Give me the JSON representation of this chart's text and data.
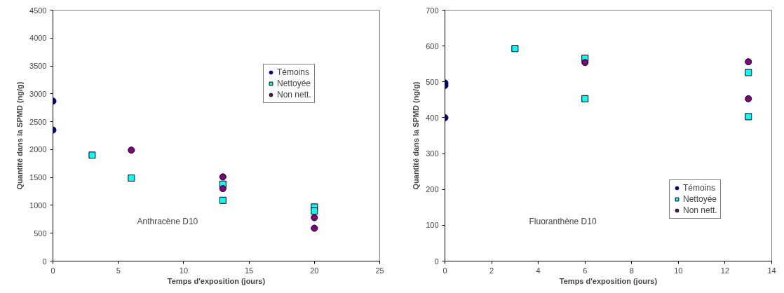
{
  "chart_data": [
    {
      "type": "scatter",
      "xlabel": "Temps d'exposition (jours)",
      "ylabel": "Quantité dans la SPMD (ng/g)",
      "annotations": [
        "Anthracène D10"
      ],
      "xlim": [
        0,
        25
      ],
      "xticks": [
        0,
        5,
        10,
        15,
        20,
        25
      ],
      "ylim": [
        0,
        4500
      ],
      "yticks": [
        0,
        500,
        1000,
        1500,
        2000,
        2500,
        3000,
        3500,
        4000,
        4500
      ],
      "grid": false,
      "legend": "top right",
      "series": [
        {
          "name": "Témoins",
          "color": "#000080",
          "marker": "circle",
          "x": [
            0,
            0
          ],
          "values": [
            2870,
            2350
          ]
        },
        {
          "name": "Nettoyée",
          "color": "#00ffff",
          "marker": "square",
          "x": [
            3,
            6,
            13,
            13,
            20,
            20
          ],
          "values": [
            1900,
            1490,
            1380,
            1090,
            970,
            900
          ]
        },
        {
          "name": "Non nett.",
          "color": "#800080",
          "marker": "circle",
          "x": [
            6,
            13,
            13,
            20,
            20
          ],
          "values": [
            1990,
            1510,
            1300,
            780,
            590
          ]
        }
      ]
    },
    {
      "type": "scatter",
      "xlabel": "Temps d'exposition (jours)",
      "ylabel": "Quantité dans la SPMD (ng/g)",
      "annotations": [
        "Fluoranthène D10"
      ],
      "xlim": [
        0,
        14
      ],
      "xticks": [
        0,
        2,
        4,
        6,
        8,
        10,
        12,
        14
      ],
      "ylim": [
        0,
        700
      ],
      "yticks": [
        0,
        100,
        200,
        300,
        400,
        500,
        600,
        700
      ],
      "grid": false,
      "legend": "right",
      "series": [
        {
          "name": "Témoins",
          "color": "#000080",
          "marker": "circle",
          "x": [
            0,
            0,
            0
          ],
          "values": [
            497,
            490,
            400
          ]
        },
        {
          "name": "Nettoyée",
          "color": "#00ffff",
          "marker": "square",
          "x": [
            3,
            6,
            6,
            13,
            13
          ],
          "values": [
            593,
            566,
            453,
            526,
            403
          ]
        },
        {
          "name": "Non nett.",
          "color": "#800080",
          "marker": "circle",
          "x": [
            6,
            13,
            13
          ],
          "values": [
            554,
            556,
            453
          ]
        }
      ]
    }
  ]
}
